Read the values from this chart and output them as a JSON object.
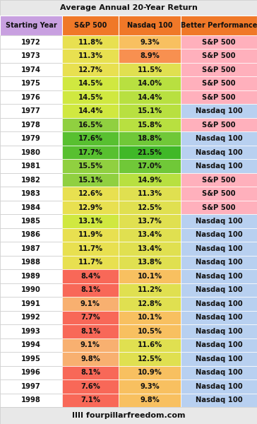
{
  "title": "Average Annual 20-Year Return",
  "rows": [
    {
      "year": "1972",
      "sp500": "11.8%",
      "nasdaq": "9.3%",
      "better": "S&P 500"
    },
    {
      "year": "1973",
      "sp500": "11.3%",
      "nasdaq": "8.9%",
      "better": "S&P 500"
    },
    {
      "year": "1974",
      "sp500": "12.7%",
      "nasdaq": "11.5%",
      "better": "S&P 500"
    },
    {
      "year": "1975",
      "sp500": "14.5%",
      "nasdaq": "14.0%",
      "better": "S&P 500"
    },
    {
      "year": "1976",
      "sp500": "14.5%",
      "nasdaq": "14.4%",
      "better": "S&P 500"
    },
    {
      "year": "1977",
      "sp500": "14.4%",
      "nasdaq": "15.1%",
      "better": "Nasdaq 100"
    },
    {
      "year": "1978",
      "sp500": "16.5%",
      "nasdaq": "15.8%",
      "better": "S&P 500"
    },
    {
      "year": "1979",
      "sp500": "17.6%",
      "nasdaq": "18.8%",
      "better": "Nasdaq 100"
    },
    {
      "year": "1980",
      "sp500": "17.7%",
      "nasdaq": "21.5%",
      "better": "Nasdaq 100"
    },
    {
      "year": "1981",
      "sp500": "15.5%",
      "nasdaq": "17.0%",
      "better": "Nasdaq 100"
    },
    {
      "year": "1982",
      "sp500": "15.1%",
      "nasdaq": "14.9%",
      "better": "S&P 500"
    },
    {
      "year": "1983",
      "sp500": "12.6%",
      "nasdaq": "11.3%",
      "better": "S&P 500"
    },
    {
      "year": "1984",
      "sp500": "12.9%",
      "nasdaq": "12.5%",
      "better": "S&P 500"
    },
    {
      "year": "1985",
      "sp500": "13.1%",
      "nasdaq": "13.7%",
      "better": "Nasdaq 100"
    },
    {
      "year": "1986",
      "sp500": "11.9%",
      "nasdaq": "13.4%",
      "better": "Nasdaq 100"
    },
    {
      "year": "1987",
      "sp500": "11.7%",
      "nasdaq": "13.4%",
      "better": "Nasdaq 100"
    },
    {
      "year": "1988",
      "sp500": "11.7%",
      "nasdaq": "13.8%",
      "better": "Nasdaq 100"
    },
    {
      "year": "1989",
      "sp500": "8.4%",
      "nasdaq": "10.1%",
      "better": "Nasdaq 100"
    },
    {
      "year": "1990",
      "sp500": "8.1%",
      "nasdaq": "11.2%",
      "better": "Nasdaq 100"
    },
    {
      "year": "1991",
      "sp500": "9.1%",
      "nasdaq": "12.8%",
      "better": "Nasdaq 100"
    },
    {
      "year": "1992",
      "sp500": "7.7%",
      "nasdaq": "10.1%",
      "better": "Nasdaq 100"
    },
    {
      "year": "1993",
      "sp500": "8.1%",
      "nasdaq": "10.5%",
      "better": "Nasdaq 100"
    },
    {
      "year": "1994",
      "sp500": "9.1%",
      "nasdaq": "11.6%",
      "better": "Nasdaq 100"
    },
    {
      "year": "1995",
      "sp500": "9.8%",
      "nasdaq": "12.5%",
      "better": "Nasdaq 100"
    },
    {
      "year": "1996",
      "sp500": "8.1%",
      "nasdaq": "10.9%",
      "better": "Nasdaq 100"
    },
    {
      "year": "1997",
      "sp500": "7.6%",
      "nasdaq": "9.3%",
      "better": "Nasdaq 100"
    },
    {
      "year": "1998",
      "sp500": "7.1%",
      "nasdaq": "9.8%",
      "better": "Nasdaq 100"
    }
  ],
  "footer": "IIII fourpillarfreedom.com",
  "header_year_bg": "#c8a0e0",
  "header_data_bg": "#f07828",
  "better_sp500_bg": "#ffb0bc",
  "better_nasdaq_bg": "#b8d0f0",
  "title_bg": "#e8e8e8",
  "footer_bg": "#e8e8e8",
  "year_bg": "#ffffff",
  "border_color": "#cccccc"
}
